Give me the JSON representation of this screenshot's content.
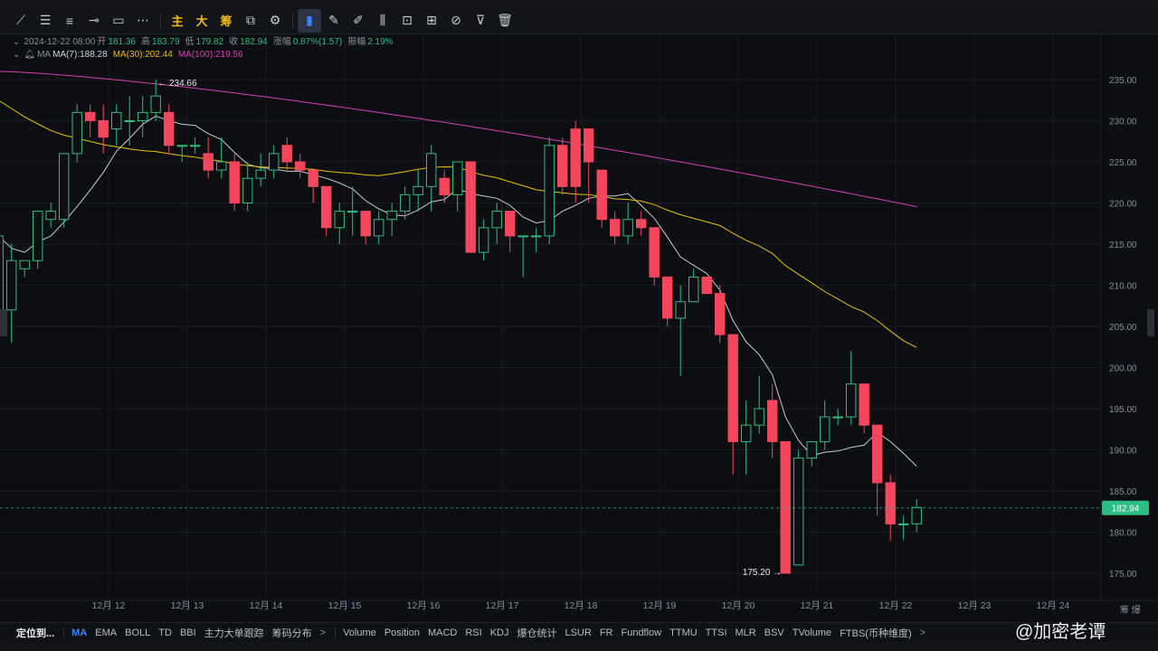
{
  "toolbar": {
    "tools": [
      {
        "name": "trend-line-tool",
        "glyph": "⟋",
        "zh": false,
        "active": false
      },
      {
        "name": "horizontal-lines-tool",
        "glyph": "☰",
        "zh": false,
        "active": false
      },
      {
        "name": "parallel-lines-tool",
        "glyph": "≡",
        "zh": false,
        "active": false
      },
      {
        "name": "ray-tool",
        "glyph": "⊸",
        "zh": false,
        "active": false
      },
      {
        "name": "rectangle-tool",
        "glyph": "▭",
        "zh": false,
        "active": false
      },
      {
        "name": "more-tools",
        "glyph": "⋯",
        "zh": false,
        "active": false
      },
      {
        "name": "main-force-tool",
        "glyph": "主",
        "zh": true,
        "active": false
      },
      {
        "name": "large-order-tool",
        "glyph": "大",
        "zh": true,
        "active": false
      },
      {
        "name": "chips-tool",
        "glyph": "筹",
        "zh": true,
        "active": false
      },
      {
        "name": "screenshot-tool",
        "glyph": "⧉",
        "zh": false,
        "active": false
      },
      {
        "name": "settings-tool",
        "glyph": "⚙",
        "zh": false,
        "active": false
      },
      {
        "name": "bookmark-tool",
        "glyph": "▮",
        "zh": false,
        "active": true
      },
      {
        "name": "ruler-tool",
        "glyph": "✎",
        "zh": false,
        "active": false
      },
      {
        "name": "brush-tool",
        "glyph": "✐",
        "zh": false,
        "active": false
      },
      {
        "name": "compare-tool",
        "glyph": "⫼",
        "zh": false,
        "active": false
      },
      {
        "name": "lock-tool",
        "glyph": "⊡",
        "zh": false,
        "active": false
      },
      {
        "name": "template-tool",
        "glyph": "⊞",
        "zh": false,
        "active": false
      },
      {
        "name": "magnet-tool",
        "glyph": "⊘",
        "zh": false,
        "active": false
      },
      {
        "name": "filter-tool",
        "glyph": "⊽",
        "zh": false,
        "active": false
      },
      {
        "name": "delete-tool",
        "glyph": "🗑",
        "zh": false,
        "active": false
      }
    ]
  },
  "ohlc": {
    "date": "2024-12-22 08:00",
    "open_label": "开",
    "open": "181.36",
    "high_label": "高",
    "high": "183.79",
    "low_label": "低",
    "low": "179.82",
    "close_label": "收",
    "close": "182.94",
    "change_label": "涨幅",
    "change": "0.87%(1.57)",
    "amp_label": "振幅",
    "amp": "2.19%"
  },
  "ma_legend": {
    "label": "MA",
    "ma7": "MA(7):188.28",
    "ma30": "MA(30):202.44",
    "ma100": "MA(100):219.56"
  },
  "colors": {
    "up": "#2ebd85",
    "down": "#f6465d",
    "ma7": "#c9cdd4",
    "ma30": "#e8c300",
    "ma100": "#d63fb4",
    "price_tag": "#2ebd85"
  },
  "chart_data": {
    "type": "candlestick",
    "title": "",
    "y_axis_ticks": [
      "235.00",
      "230.00",
      "225.00",
      "220.00",
      "215.00",
      "210.00",
      "205.00",
      "200.00",
      "195.00",
      "190.00",
      "185.00",
      "180.00",
      "175.00"
    ],
    "ylim": [
      172,
      237
    ],
    "x_labels": [
      "12月 12",
      "12月 13",
      "12月 14",
      "12月 15",
      "12月 16",
      "12月 17",
      "12月 18",
      "12月 19",
      "12月 20",
      "12月 21",
      "12月 22",
      "12月 23",
      "12月 24"
    ],
    "candles_per_day": 6,
    "first_candle_day_offset": -1.4,
    "candles": [
      [
        207,
        216,
        218,
        207
      ],
      [
        207,
        213,
        215,
        203
      ],
      [
        212,
        213,
        213,
        211
      ],
      [
        213,
        219,
        219,
        212
      ],
      [
        218,
        219,
        220,
        217
      ],
      [
        218,
        226,
        226,
        217
      ],
      [
        226,
        231,
        232,
        225
      ],
      [
        231,
        230,
        232,
        228
      ],
      [
        230,
        228,
        232,
        226
      ],
      [
        229,
        231,
        232,
        227
      ],
      [
        230,
        230,
        233,
        227
      ],
      [
        230,
        231,
        233,
        228
      ],
      [
        231,
        233,
        235,
        230
      ],
      [
        231,
        227,
        232,
        226
      ],
      [
        227,
        227,
        227,
        225
      ],
      [
        227,
        227,
        228,
        226
      ],
      [
        226,
        224,
        228,
        223
      ],
      [
        224,
        225,
        228,
        223
      ],
      [
        225,
        220,
        226,
        219
      ],
      [
        220,
        223,
        225,
        219
      ],
      [
        223,
        224,
        226,
        222
      ],
      [
        224,
        226,
        227,
        223
      ],
      [
        227,
        225,
        228,
        224
      ],
      [
        225,
        224,
        226,
        223
      ],
      [
        224,
        222,
        224,
        220
      ],
      [
        222,
        217,
        222,
        216
      ],
      [
        217,
        219,
        220,
        215
      ],
      [
        219,
        219,
        222,
        216
      ],
      [
        219,
        216,
        219,
        215
      ],
      [
        216,
        218,
        219,
        215
      ],
      [
        218,
        219,
        220,
        216
      ],
      [
        219,
        221,
        222,
        218
      ],
      [
        221,
        222,
        224,
        219
      ],
      [
        222,
        226,
        227,
        219
      ],
      [
        223,
        221,
        224,
        220
      ],
      [
        221,
        225,
        225,
        219
      ],
      [
        225,
        214,
        225,
        214
      ],
      [
        214,
        217,
        218,
        213
      ],
      [
        217,
        219,
        220,
        215
      ],
      [
        219,
        216,
        219,
        214
      ],
      [
        216,
        216,
        216,
        211
      ],
      [
        216,
        216,
        217,
        214
      ],
      [
        216,
        227,
        228,
        215
      ],
      [
        227,
        222,
        228,
        221
      ],
      [
        229,
        222,
        230,
        220
      ],
      [
        229,
        225,
        229,
        220
      ],
      [
        224,
        218,
        224,
        217
      ],
      [
        218,
        216,
        219,
        215
      ],
      [
        216,
        218,
        220,
        215
      ],
      [
        218,
        217,
        219,
        216
      ],
      [
        217,
        211,
        217,
        210
      ],
      [
        211,
        206,
        211,
        205
      ],
      [
        206,
        208,
        210,
        199
      ],
      [
        208,
        211,
        212,
        208
      ],
      [
        211,
        209,
        211,
        209
      ],
      [
        209,
        204,
        210,
        203
      ],
      [
        204,
        191,
        204,
        187
      ],
      [
        191,
        193,
        196,
        187
      ],
      [
        193,
        195,
        199,
        192
      ],
      [
        196,
        191,
        198,
        189
      ],
      [
        191,
        175,
        191,
        175
      ],
      [
        176,
        189,
        190,
        176
      ],
      [
        189,
        191,
        191,
        188
      ],
      [
        191,
        194,
        196,
        190
      ],
      [
        194,
        194,
        195,
        193
      ],
      [
        194,
        198,
        202,
        193
      ],
      [
        198,
        193,
        198,
        192
      ],
      [
        193,
        186,
        193,
        182
      ],
      [
        186,
        181,
        187,
        179
      ],
      [
        181,
        181,
        182,
        179
      ],
      [
        181,
        183,
        184,
        180
      ]
    ],
    "ma7_last": 188.28,
    "ma30_last": 202.44,
    "ma100_last": 219.56,
    "high_marker": {
      "label": "← 234.66",
      "value": 234.66
    },
    "low_marker": {
      "label": "175.20 →",
      "value": 175.2
    },
    "current_price": {
      "label": "182.94",
      "value": 182.94
    },
    "axis_corner_label": "筹 爆"
  },
  "bottombar": {
    "locate": "定位到...",
    "items": [
      "MA",
      "EMA",
      "BOLL",
      "TD",
      "BBI",
      "主力大单跟踪",
      "筹码分布"
    ],
    "items2": [
      "Volume",
      "Position",
      "MACD",
      "RSI",
      "KDJ",
      "爆仓统计",
      "LSUR",
      "FR",
      "Fundflow",
      "TTMU",
      "TTSI",
      "MLR",
      "BSV",
      "TVolume",
      "FTBS(币种维度)"
    ],
    "arrow": ">"
  },
  "watermark": "@加密老谭"
}
